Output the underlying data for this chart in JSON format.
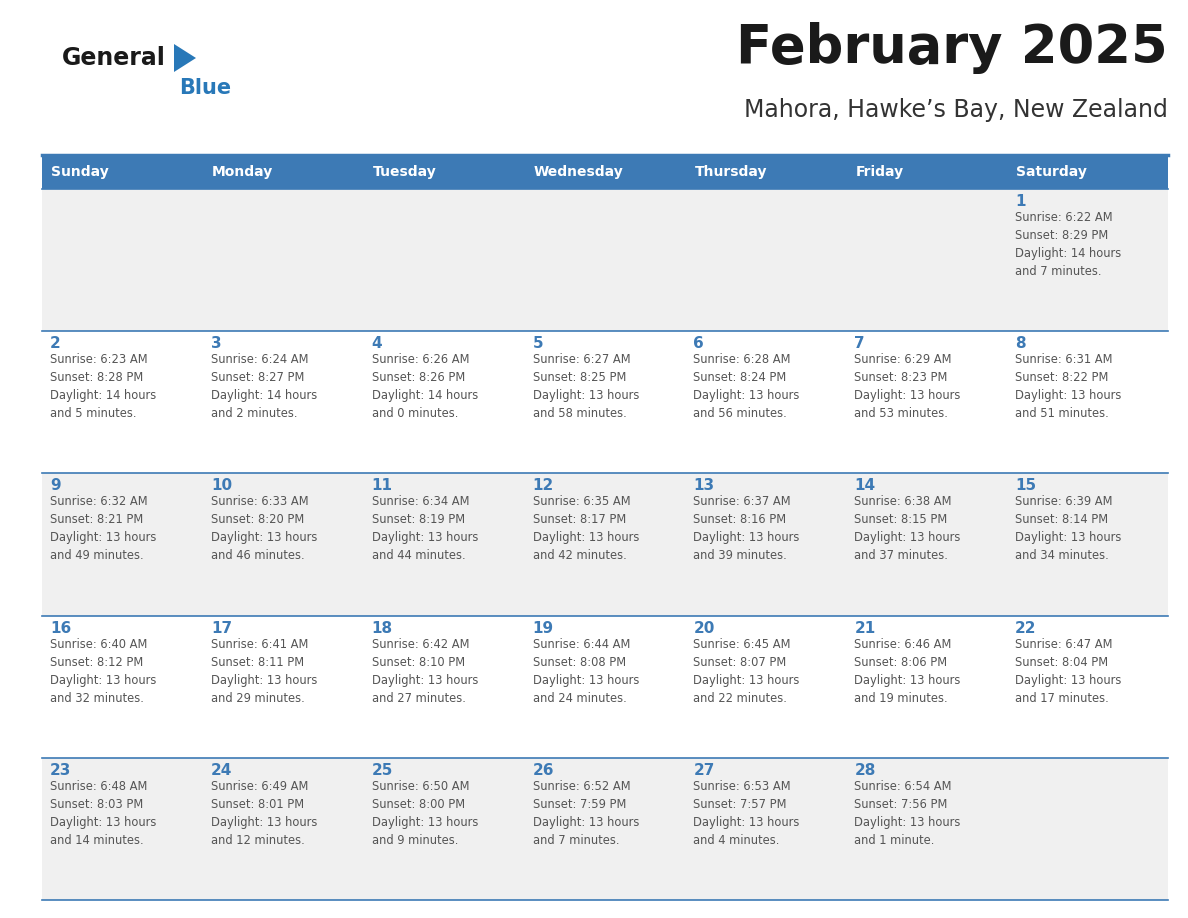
{
  "title": "February 2025",
  "subtitle": "Mahora, Hawke’s Bay, New Zealand",
  "header_bg": "#3d7ab5",
  "header_text": "#ffffff",
  "day_names": [
    "Sunday",
    "Monday",
    "Tuesday",
    "Wednesday",
    "Thursday",
    "Friday",
    "Saturday"
  ],
  "odd_row_bg": "#f0f0f0",
  "even_row_bg": "#ffffff",
  "number_color": "#3d7ab5",
  "info_color": "#555555",
  "title_color": "#1a1a1a",
  "subtitle_color": "#333333",
  "logo_general_color": "#1a1a1a",
  "logo_blue_color": "#2878b8",
  "separator_color": "#3d7ab5",
  "calendar_data": [
    {
      "days": [
        null,
        null,
        null,
        null,
        null,
        null,
        1
      ],
      "info": [
        null,
        null,
        null,
        null,
        null,
        null,
        "Sunrise: 6:22 AM\nSunset: 8:29 PM\nDaylight: 14 hours\nand 7 minutes."
      ]
    },
    {
      "days": [
        2,
        3,
        4,
        5,
        6,
        7,
        8
      ],
      "info": [
        "Sunrise: 6:23 AM\nSunset: 8:28 PM\nDaylight: 14 hours\nand 5 minutes.",
        "Sunrise: 6:24 AM\nSunset: 8:27 PM\nDaylight: 14 hours\nand 2 minutes.",
        "Sunrise: 6:26 AM\nSunset: 8:26 PM\nDaylight: 14 hours\nand 0 minutes.",
        "Sunrise: 6:27 AM\nSunset: 8:25 PM\nDaylight: 13 hours\nand 58 minutes.",
        "Sunrise: 6:28 AM\nSunset: 8:24 PM\nDaylight: 13 hours\nand 56 minutes.",
        "Sunrise: 6:29 AM\nSunset: 8:23 PM\nDaylight: 13 hours\nand 53 minutes.",
        "Sunrise: 6:31 AM\nSunset: 8:22 PM\nDaylight: 13 hours\nand 51 minutes."
      ]
    },
    {
      "days": [
        9,
        10,
        11,
        12,
        13,
        14,
        15
      ],
      "info": [
        "Sunrise: 6:32 AM\nSunset: 8:21 PM\nDaylight: 13 hours\nand 49 minutes.",
        "Sunrise: 6:33 AM\nSunset: 8:20 PM\nDaylight: 13 hours\nand 46 minutes.",
        "Sunrise: 6:34 AM\nSunset: 8:19 PM\nDaylight: 13 hours\nand 44 minutes.",
        "Sunrise: 6:35 AM\nSunset: 8:17 PM\nDaylight: 13 hours\nand 42 minutes.",
        "Sunrise: 6:37 AM\nSunset: 8:16 PM\nDaylight: 13 hours\nand 39 minutes.",
        "Sunrise: 6:38 AM\nSunset: 8:15 PM\nDaylight: 13 hours\nand 37 minutes.",
        "Sunrise: 6:39 AM\nSunset: 8:14 PM\nDaylight: 13 hours\nand 34 minutes."
      ]
    },
    {
      "days": [
        16,
        17,
        18,
        19,
        20,
        21,
        22
      ],
      "info": [
        "Sunrise: 6:40 AM\nSunset: 8:12 PM\nDaylight: 13 hours\nand 32 minutes.",
        "Sunrise: 6:41 AM\nSunset: 8:11 PM\nDaylight: 13 hours\nand 29 minutes.",
        "Sunrise: 6:42 AM\nSunset: 8:10 PM\nDaylight: 13 hours\nand 27 minutes.",
        "Sunrise: 6:44 AM\nSunset: 8:08 PM\nDaylight: 13 hours\nand 24 minutes.",
        "Sunrise: 6:45 AM\nSunset: 8:07 PM\nDaylight: 13 hours\nand 22 minutes.",
        "Sunrise: 6:46 AM\nSunset: 8:06 PM\nDaylight: 13 hours\nand 19 minutes.",
        "Sunrise: 6:47 AM\nSunset: 8:04 PM\nDaylight: 13 hours\nand 17 minutes."
      ]
    },
    {
      "days": [
        23,
        24,
        25,
        26,
        27,
        28,
        null
      ],
      "info": [
        "Sunrise: 6:48 AM\nSunset: 8:03 PM\nDaylight: 13 hours\nand 14 minutes.",
        "Sunrise: 6:49 AM\nSunset: 8:01 PM\nDaylight: 13 hours\nand 12 minutes.",
        "Sunrise: 6:50 AM\nSunset: 8:00 PM\nDaylight: 13 hours\nand 9 minutes.",
        "Sunrise: 6:52 AM\nSunset: 7:59 PM\nDaylight: 13 hours\nand 7 minutes.",
        "Sunrise: 6:53 AM\nSunset: 7:57 PM\nDaylight: 13 hours\nand 4 minutes.",
        "Sunrise: 6:54 AM\nSunset: 7:56 PM\nDaylight: 13 hours\nand 1 minute.",
        null
      ]
    }
  ]
}
